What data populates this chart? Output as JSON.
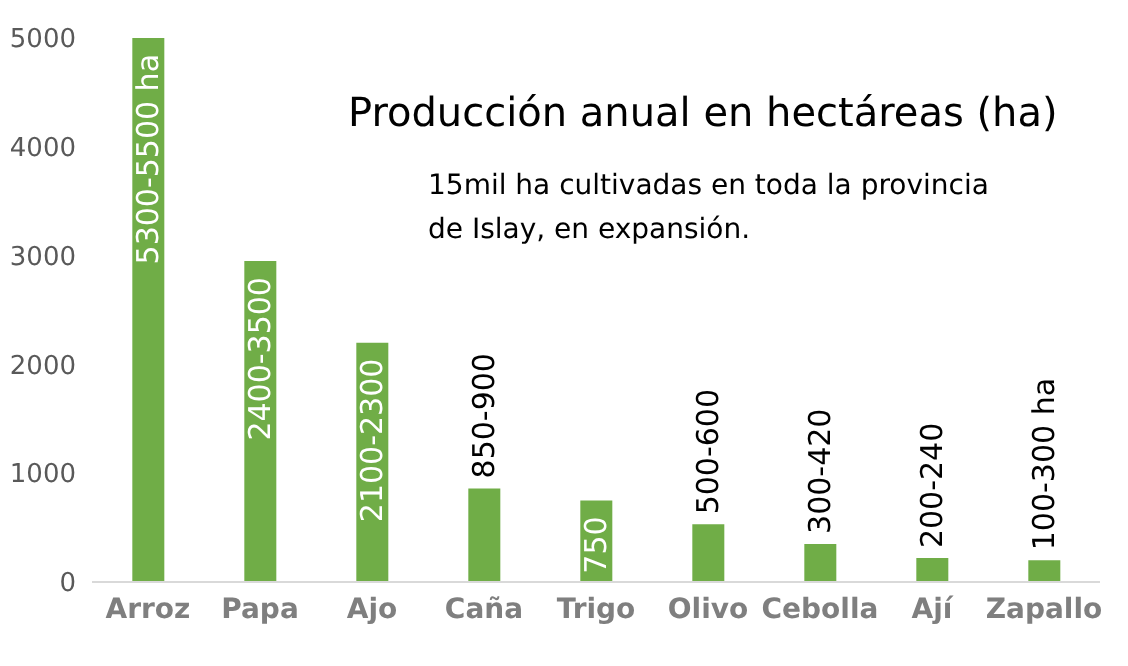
{
  "chart_data": {
    "type": "bar",
    "title": "Producción anual en hectáreas (ha)",
    "subtitle": "15mil ha cultivadas en toda la provincia de Islay, en expansión.",
    "categories": [
      "Arroz",
      "Papa",
      "Ajo",
      "Caña",
      "Trigo",
      "Olivo",
      "Cebolla",
      "Ají",
      "Zapallo"
    ],
    "values": [
      5000,
      2950,
      2200,
      860,
      750,
      530,
      350,
      220,
      200
    ],
    "value_labels": [
      "5300-5500 ha",
      "2400-3500",
      "2100-2300",
      "850-900",
      "750",
      "500-600",
      "300-420",
      "200-240",
      "100-300 ha"
    ],
    "color": "#70ad47",
    "ylim": [
      0,
      5000
    ],
    "yticks": [
      0,
      1000,
      2000,
      3000,
      4000,
      5000
    ],
    "grid": false,
    "legend": false
  }
}
